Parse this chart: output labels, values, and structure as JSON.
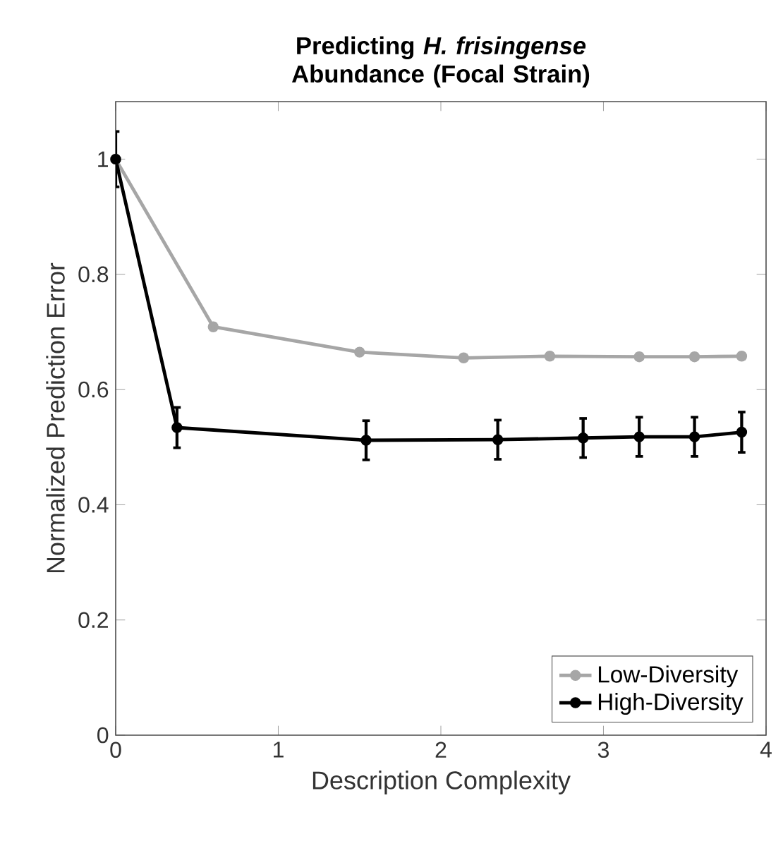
{
  "chart_data": {
    "type": "line",
    "title": "Predicting  *H. frisingense* Abundance (Focal Strain)",
    "xlabel": "Description Complexity",
    "ylabel": "Normalized Prediction Error",
    "xlim": [
      0,
      4
    ],
    "ylim": [
      0,
      1.1
    ],
    "xticks": [
      0,
      1,
      2,
      3,
      4
    ],
    "yticks": [
      0,
      0.2,
      0.4,
      0.6,
      0.8,
      1
    ],
    "legend": "bottom right",
    "marker": "circle",
    "line_style": "solid",
    "series": [
      {
        "name": "Low-Diversity",
        "color": "#a6a6a6",
        "x": [
          0,
          0.6,
          1.5,
          2.14,
          2.67,
          3.22,
          3.56,
          3.85
        ],
        "values": [
          1,
          0.709,
          0.665,
          0.655,
          0.658,
          0.657,
          0.657,
          0.658
        ],
        "errors": [
          0.005,
          0.005,
          0.005,
          0.005,
          0.005,
          0.005,
          0.005,
          0.005
        ]
      },
      {
        "name": "High-Diversity",
        "color": "#000000",
        "x": [
          0,
          0.377,
          1.54,
          2.35,
          2.875,
          3.22,
          3.56,
          3.85
        ],
        "values": [
          1,
          0.534,
          0.512,
          0.513,
          0.516,
          0.518,
          0.518,
          0.526
        ],
        "errors": [
          0.048,
          0.035,
          0.034,
          0.034,
          0.034,
          0.034,
          0.034,
          0.035
        ]
      }
    ]
  }
}
